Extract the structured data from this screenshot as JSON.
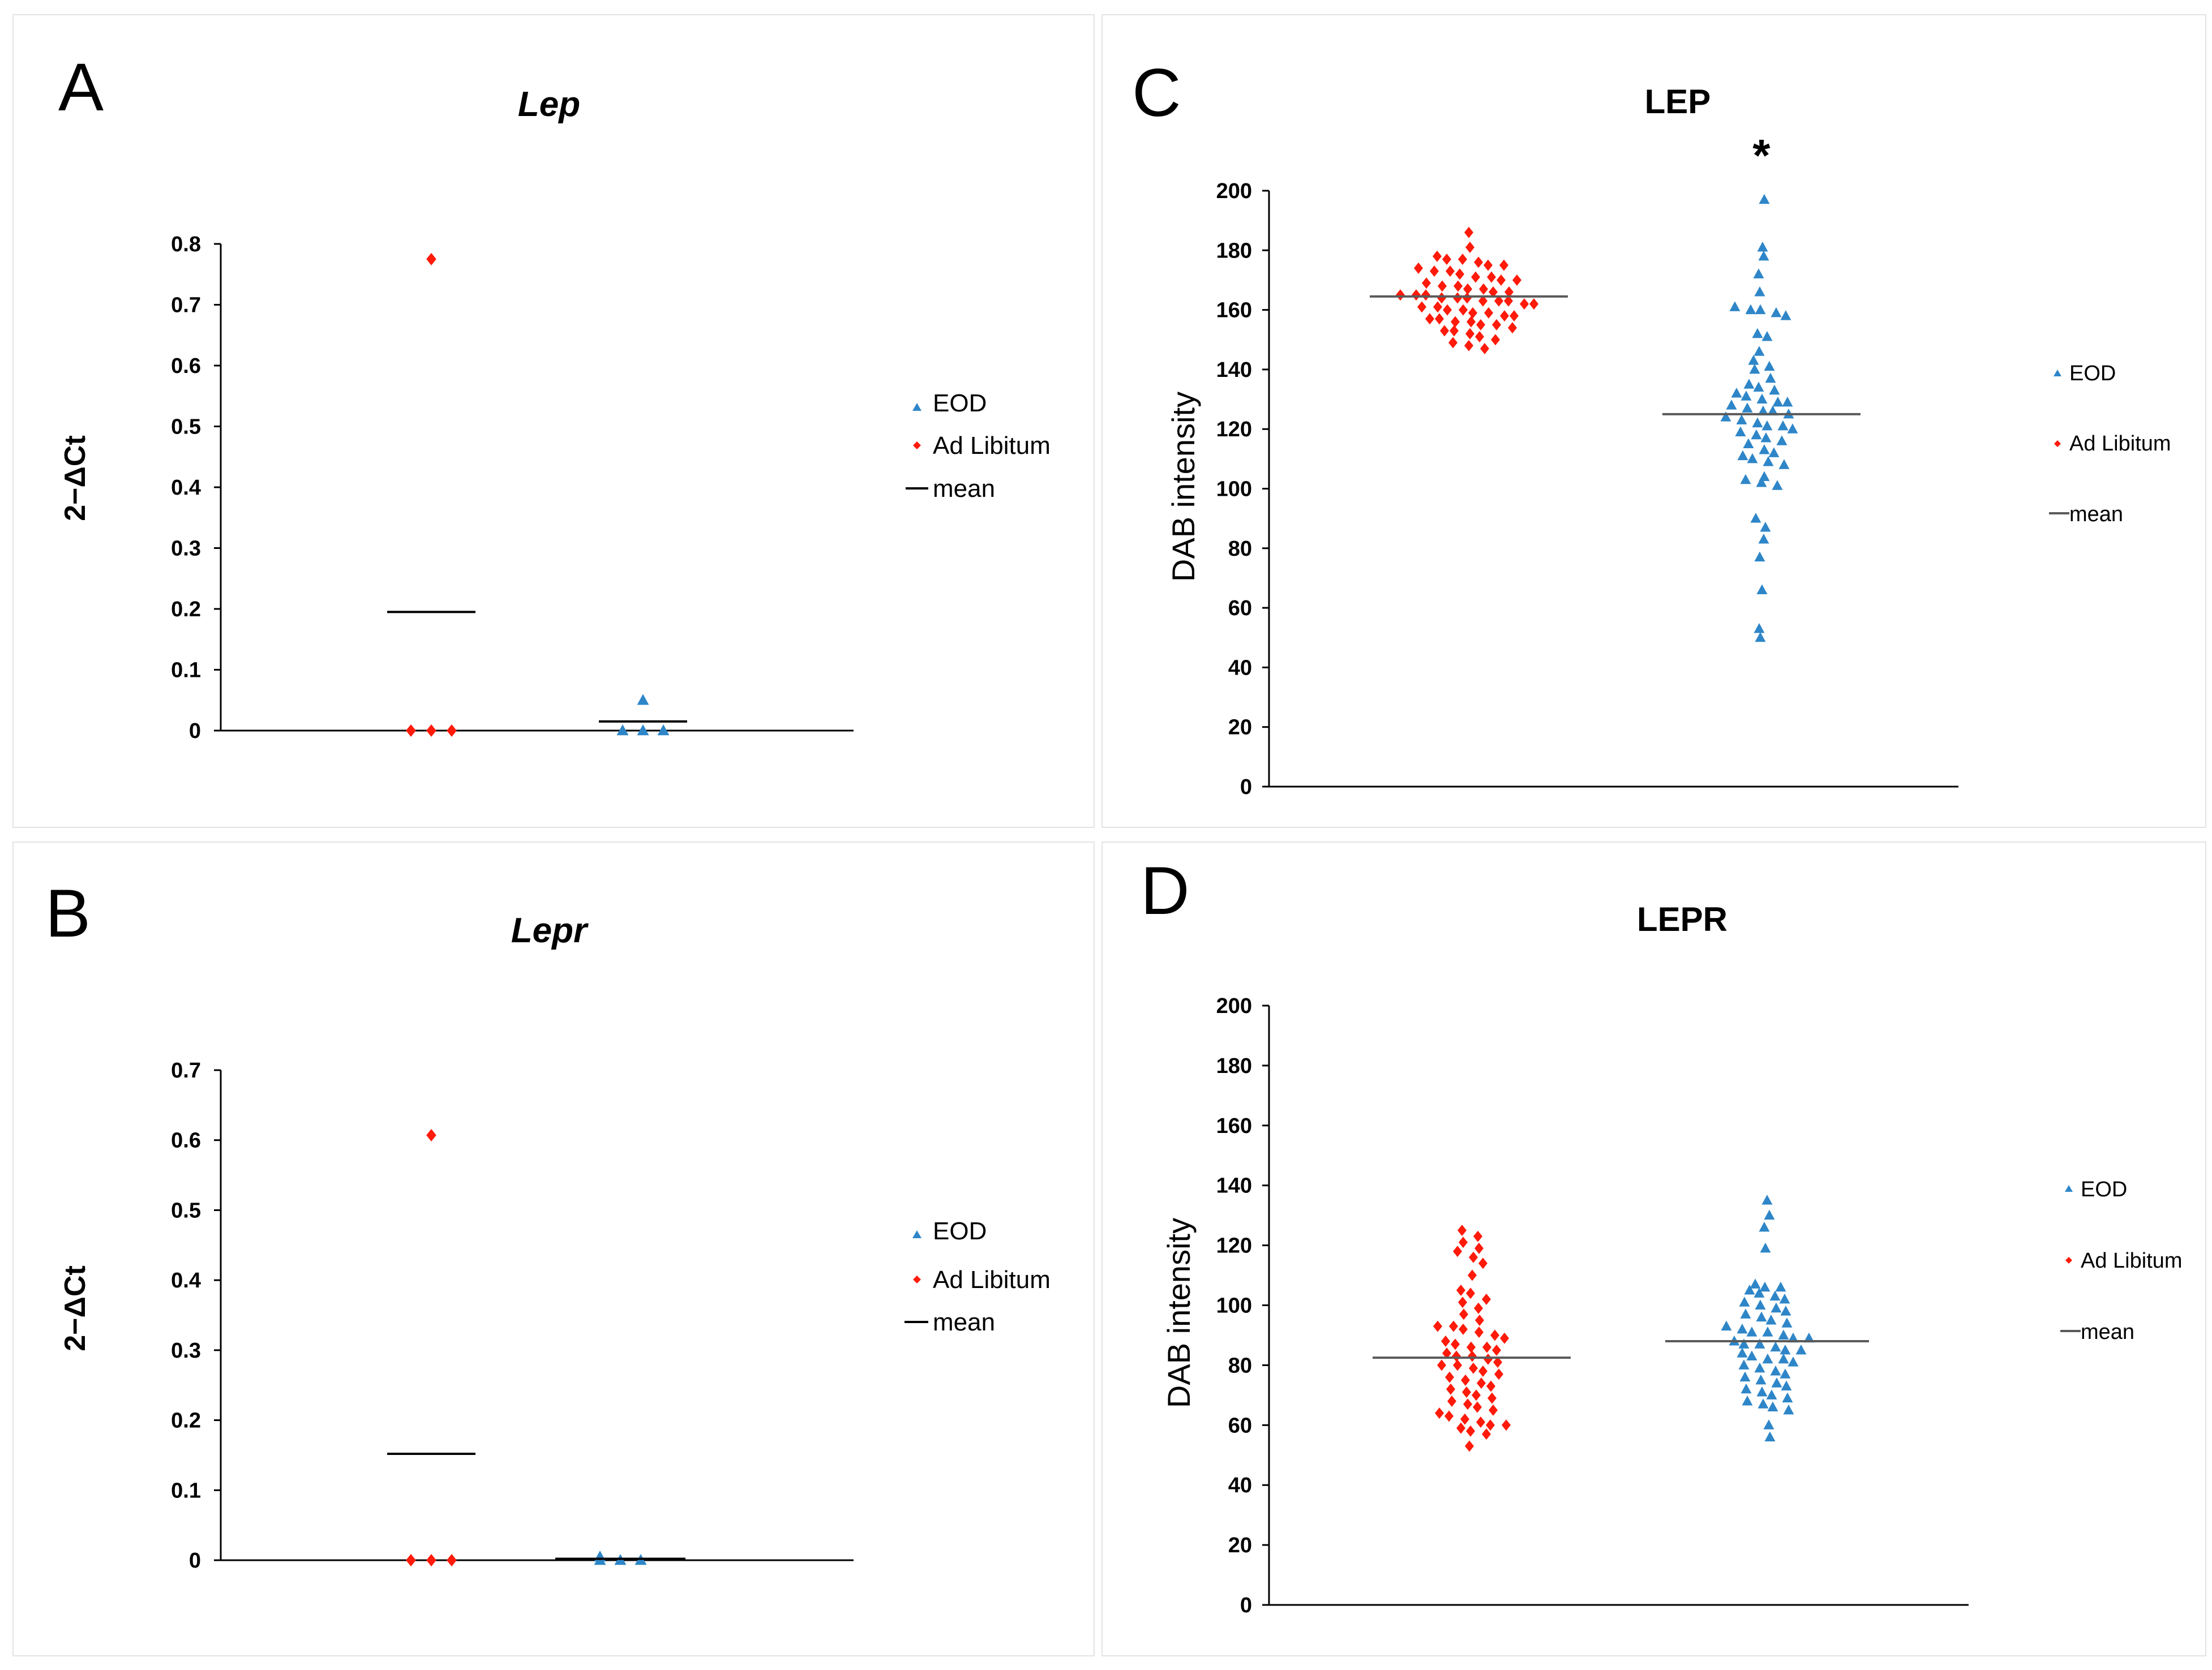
{
  "colors": {
    "eod": "#2e86c8",
    "ad_libitum": "#ff1a0a",
    "mean_dark": "#000000",
    "mean_grey": "#5a5a5a",
    "axis": "#000000"
  },
  "legend_icons": {
    "eod": "triangle-marker-icon",
    "ad_libitum": "diamond-marker-icon",
    "mean": "line-marker-icon"
  },
  "chart_data": [
    {
      "panel_label": "A",
      "type": "scatter",
      "title": "Lep",
      "ylabel": "2−ΔCt",
      "ylim": [
        0,
        0.8
      ],
      "yticks": [
        "0",
        "0.1",
        "0.2",
        "0.3",
        "0.4",
        "0.5",
        "0.6",
        "0.7",
        "0.8"
      ],
      "legend": [
        "EOD",
        "Ad Libitum",
        "mean"
      ],
      "series": [
        {
          "name": "Ad Libitum",
          "marker": "diamond",
          "values": [
            0.0,
            0.0,
            0.0,
            0.775
          ],
          "mean": 0.195
        },
        {
          "name": "EOD",
          "marker": "triangle",
          "values": [
            0.0,
            0.0,
            0.0,
            0.05
          ],
          "mean": 0.015
        }
      ]
    },
    {
      "panel_label": "B",
      "type": "scatter",
      "title": "Lepr",
      "ylabel": "2−ΔCt",
      "ylim": [
        0,
        0.7
      ],
      "yticks": [
        "0",
        "0.1",
        "0.2",
        "0.3",
        "0.4",
        "0.5",
        "0.6",
        "0.7"
      ],
      "legend": [
        "EOD",
        "Ad Libitum",
        "mean"
      ],
      "series": [
        {
          "name": "Ad Libitum",
          "marker": "diamond",
          "values": [
            0.0,
            0.0,
            0.0,
            0.607
          ],
          "mean": 0.152
        },
        {
          "name": "EOD",
          "marker": "triangle",
          "values": [
            0.0,
            0.0,
            0.0,
            0.005
          ],
          "mean": 0.002
        }
      ]
    },
    {
      "panel_label": "C",
      "type": "scatter",
      "title": "LEP",
      "annotation": "*",
      "ylabel": "DAB intensity",
      "ylim": [
        0,
        200
      ],
      "yticks": [
        "0",
        "20",
        "40",
        "60",
        "80",
        "100",
        "120",
        "140",
        "160",
        "180",
        "200"
      ],
      "legend": [
        "EOD",
        "Ad Libitum",
        "mean"
      ],
      "series": [
        {
          "name": "Ad Libitum",
          "marker": "diamond",
          "mean": 164.5,
          "values": [
            186,
            181,
            178,
            177,
            177,
            176,
            175,
            175,
            174,
            173,
            173,
            172,
            171,
            171,
            170,
            170,
            169,
            168,
            168,
            167,
            167,
            166,
            166,
            165,
            165,
            165,
            164,
            164,
            164,
            163,
            163,
            163,
            162,
            162,
            161,
            161,
            160,
            160,
            159,
            159,
            158,
            158,
            157,
            157,
            156,
            156,
            155,
            155,
            154,
            153,
            153,
            152,
            151,
            150,
            149,
            148,
            147
          ]
        },
        {
          "name": "EOD",
          "marker": "triangle",
          "mean": 125,
          "values": [
            197,
            181,
            178,
            172,
            166,
            161,
            160,
            160,
            159,
            158,
            152,
            151,
            146,
            143,
            141,
            140,
            137,
            135,
            134,
            133,
            132,
            131,
            130,
            129,
            129,
            128,
            127,
            126,
            126,
            125,
            124,
            123,
            122,
            121,
            121,
            120,
            119,
            118,
            117,
            116,
            115,
            113,
            112,
            111,
            110,
            109,
            108,
            104,
            103,
            102,
            101,
            90,
            87,
            83,
            77,
            66,
            53,
            50
          ]
        }
      ]
    },
    {
      "panel_label": "D",
      "type": "scatter",
      "title": "LEPR",
      "ylabel": "DAB intensity",
      "ylim": [
        0,
        200
      ],
      "yticks": [
        "0",
        "20",
        "40",
        "60",
        "80",
        "100",
        "120",
        "140",
        "160",
        "180",
        "200"
      ],
      "legend": [
        "EOD",
        "Ad Libitum",
        "mean"
      ],
      "series": [
        {
          "name": "Ad Libitum",
          "marker": "diamond",
          "mean": 82.5,
          "values": [
            125,
            123,
            121,
            119,
            118,
            116,
            114,
            110,
            105,
            104,
            102,
            101,
            99,
            97,
            95,
            93,
            93,
            92,
            91,
            90,
            89,
            88,
            87,
            86,
            86,
            85,
            84,
            83,
            83,
            82,
            81,
            80,
            80,
            79,
            78,
            77,
            76,
            75,
            74,
            73,
            72,
            71,
            70,
            69,
            68,
            67,
            66,
            65,
            64,
            63,
            62,
            61,
            60,
            60,
            59,
            58,
            57,
            53
          ]
        },
        {
          "name": "EOD",
          "marker": "triangle",
          "mean": 88,
          "values": [
            135,
            130,
            126,
            119,
            107,
            106,
            106,
            105,
            104,
            103,
            102,
            101,
            100,
            99,
            98,
            97,
            96,
            95,
            94,
            93,
            92,
            91,
            91,
            90,
            89,
            89,
            88,
            87,
            87,
            86,
            85,
            85,
            84,
            83,
            82,
            82,
            81,
            80,
            79,
            78,
            77,
            76,
            75,
            74,
            73,
            72,
            71,
            70,
            69,
            68,
            67,
            66,
            65,
            60,
            56
          ]
        }
      ]
    }
  ]
}
